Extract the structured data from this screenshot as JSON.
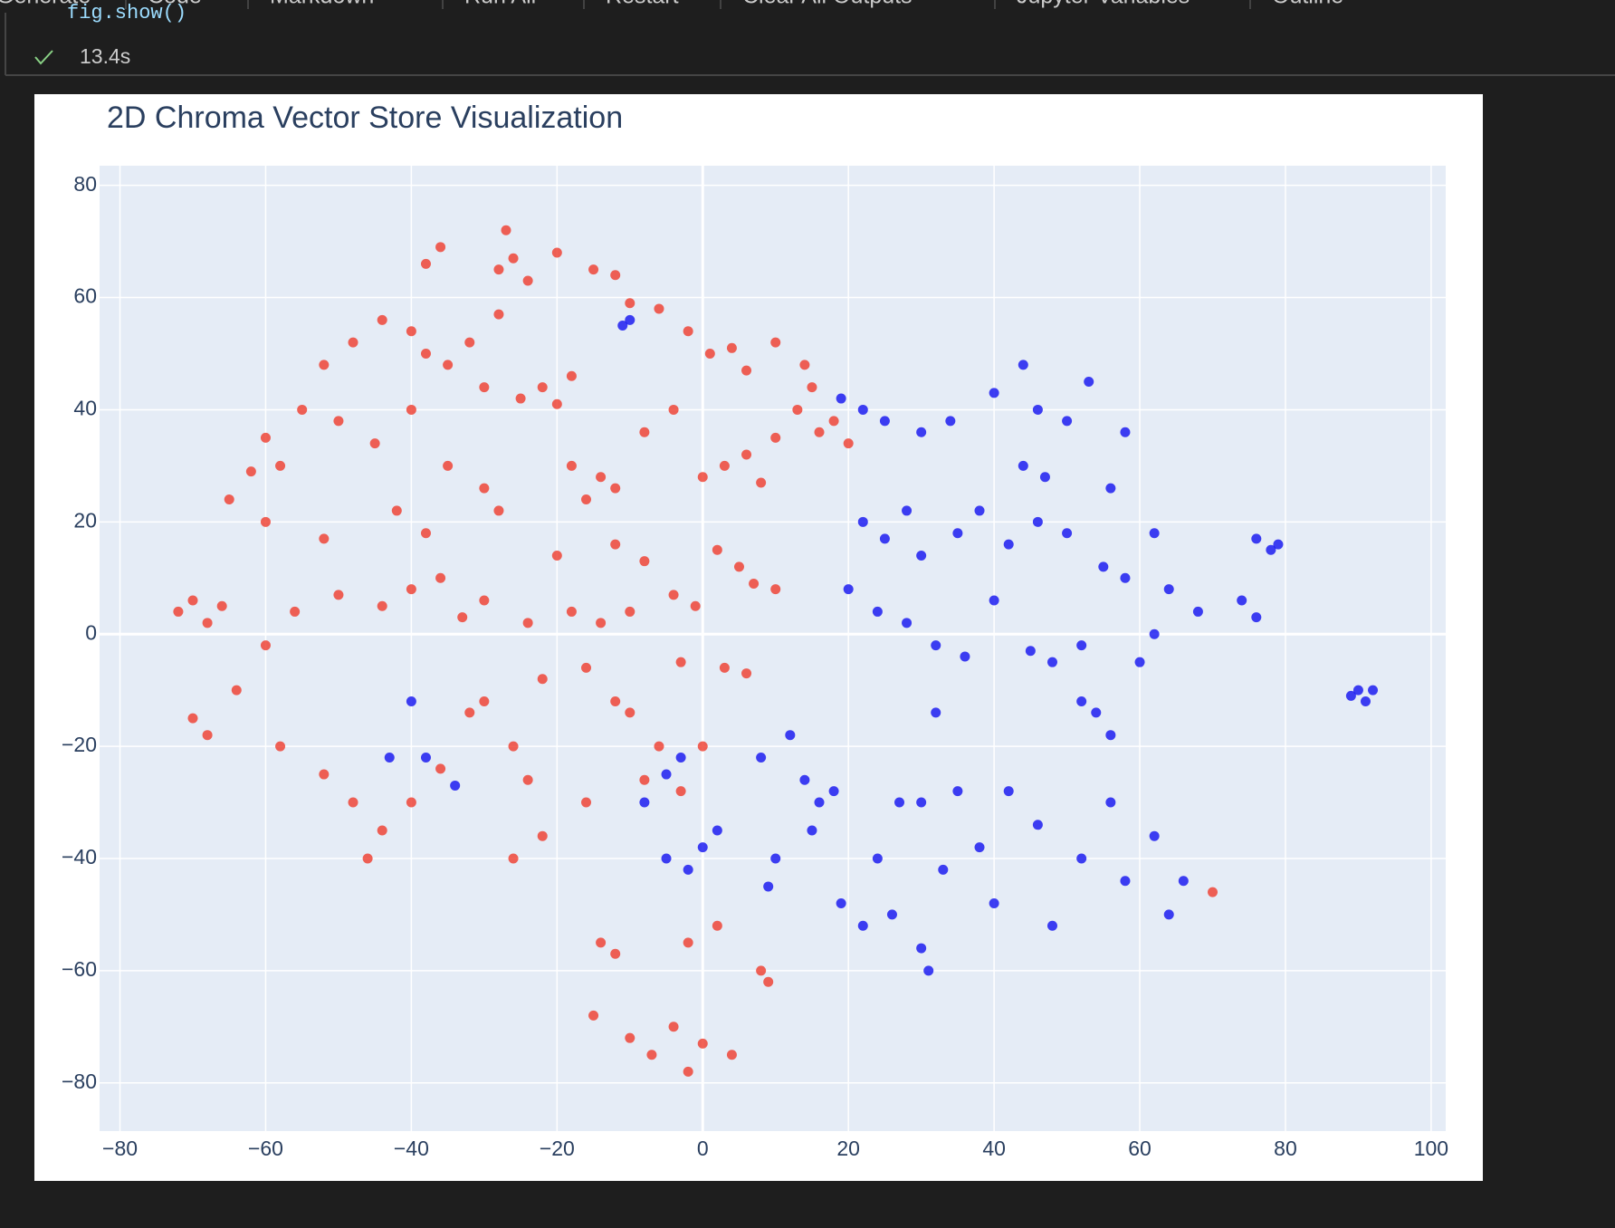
{
  "toolbar": {
    "items": [
      "Generate",
      "Code",
      "Markdown",
      "Run All",
      "Restart",
      "Clear All Outputs",
      "Jupyter Variables",
      "Outline"
    ]
  },
  "cell": {
    "code": "fig.show()",
    "status": "13.4s"
  },
  "chart_data": {
    "type": "scatter",
    "title": "2D Chroma Vector Store Visualization",
    "xlim": [
      -82.8,
      102
    ],
    "ylim": [
      -88.6,
      83.5
    ],
    "xticks": [
      {
        "value": -80,
        "label": "−80"
      },
      {
        "value": -60,
        "label": "−60"
      },
      {
        "value": -40,
        "label": "−40"
      },
      {
        "value": -20,
        "label": "−20"
      },
      0,
      20,
      40,
      60,
      80,
      100
    ],
    "yticks": [
      {
        "value": -80,
        "label": "−80"
      },
      {
        "value": -60,
        "label": "−60"
      },
      {
        "value": -40,
        "label": "−40"
      },
      {
        "value": -20,
        "label": "−20"
      },
      0,
      20,
      40,
      60,
      80
    ],
    "grid": true,
    "series": [
      {
        "color": "#ef3b2c",
        "x": [
          -27,
          -26,
          -28,
          -36,
          -38,
          -24,
          -20,
          -15,
          -12,
          -10,
          -6,
          -2,
          1,
          4,
          6,
          10,
          14,
          15,
          13,
          -40,
          -38,
          -35,
          -32,
          -30,
          -25,
          -22,
          -20,
          -18,
          -28,
          -44,
          -48,
          -52,
          -55,
          -60,
          -62,
          -65,
          -58,
          -50,
          -45,
          -40,
          -35,
          -30,
          -18,
          -14,
          -12,
          -16,
          -8,
          -4,
          0,
          3,
          6,
          8,
          10,
          16,
          18,
          20,
          -60,
          -52,
          -42,
          -38,
          -28,
          -20,
          -12,
          -8,
          2,
          5,
          7,
          10,
          -72,
          -70,
          -68,
          -66,
          -60,
          -56,
          -50,
          -44,
          -40,
          -36,
          -33,
          -30,
          -24,
          -18,
          -14,
          -10,
          -4,
          -1,
          -3,
          3,
          6,
          -22,
          -16,
          -12,
          -10,
          -70,
          -68,
          -64,
          -58,
          -52,
          -48,
          -44,
          -46,
          -40,
          -36,
          -32,
          -30,
          -26,
          -24,
          -16,
          -22,
          -26,
          -14,
          -12,
          -15,
          -10,
          -7,
          -4,
          -2,
          0,
          4,
          2,
          -2,
          8,
          9,
          -6,
          0,
          70,
          -3,
          -8
        ],
        "y": [
          72,
          67,
          65,
          69,
          66,
          63,
          68,
          65,
          64,
          59,
          58,
          54,
          50,
          51,
          47,
          52,
          48,
          44,
          40,
          54,
          50,
          48,
          52,
          44,
          42,
          44,
          41,
          46,
          57,
          56,
          52,
          48,
          40,
          35,
          29,
          24,
          30,
          38,
          34,
          40,
          30,
          26,
          30,
          28,
          26,
          24,
          36,
          40,
          28,
          30,
          32,
          27,
          35,
          36,
          38,
          34,
          20,
          17,
          22,
          18,
          22,
          14,
          16,
          13,
          15,
          12,
          9,
          8,
          4,
          6,
          2,
          5,
          -2,
          4,
          7,
          5,
          8,
          10,
          3,
          6,
          2,
          4,
          2,
          4,
          7,
          5,
          -5,
          -6,
          -7,
          -8,
          -6,
          -12,
          -14,
          -15,
          -18,
          -10,
          -20,
          -25,
          -30,
          -35,
          -40,
          -30,
          -24,
          -14,
          -12,
          -20,
          -26,
          -30,
          -36,
          -40,
          -55,
          -57,
          -68,
          -72,
          -75,
          -70,
          -78,
          -73,
          -75,
          -52,
          -55,
          -60,
          -62,
          -20,
          -20,
          -46,
          -28,
          -26
        ]
      },
      {
        "color": "#1010f0",
        "x": [
          19,
          22,
          25,
          30,
          34,
          40,
          44,
          46,
          50,
          58,
          53,
          44,
          47,
          22,
          25,
          28,
          30,
          35,
          38,
          42,
          46,
          50,
          56,
          55,
          58,
          62,
          64,
          20,
          24,
          28,
          32,
          36,
          40,
          45,
          48,
          52,
          62,
          68,
          74,
          78,
          76,
          79,
          76,
          90,
          91,
          89,
          92,
          27,
          30,
          0,
          -2,
          -5,
          2,
          -8,
          -5,
          -3,
          8,
          12,
          14,
          16,
          18,
          10,
          9,
          15,
          19,
          22,
          26,
          24,
          30,
          31,
          33,
          38,
          40,
          42,
          46,
          48,
          52,
          56,
          58,
          62,
          64,
          66,
          54,
          56,
          52,
          60,
          -43,
          -38,
          -34,
          -40,
          -11,
          -10,
          32,
          35
        ],
        "y": [
          42,
          40,
          38,
          36,
          38,
          43,
          48,
          40,
          38,
          36,
          45,
          30,
          28,
          20,
          17,
          22,
          14,
          18,
          22,
          16,
          20,
          18,
          26,
          12,
          10,
          18,
          8,
          8,
          4,
          2,
          -2,
          -4,
          6,
          -3,
          -5,
          -2,
          0,
          4,
          6,
          15,
          17,
          16,
          3,
          -10,
          -12,
          -11,
          -10,
          -30,
          -30,
          -38,
          -42,
          -40,
          -35,
          -30,
          -25,
          -22,
          -22,
          -18,
          -26,
          -30,
          -28,
          -40,
          -45,
          -35,
          -48,
          -52,
          -50,
          -40,
          -56,
          -60,
          -42,
          -38,
          -48,
          -28,
          -34,
          -52,
          -40,
          -30,
          -44,
          -36,
          -50,
          -44,
          -14,
          -18,
          -12,
          -5,
          -22,
          -22,
          -27,
          -12,
          55,
          56,
          -14,
          -28
        ]
      }
    ]
  }
}
